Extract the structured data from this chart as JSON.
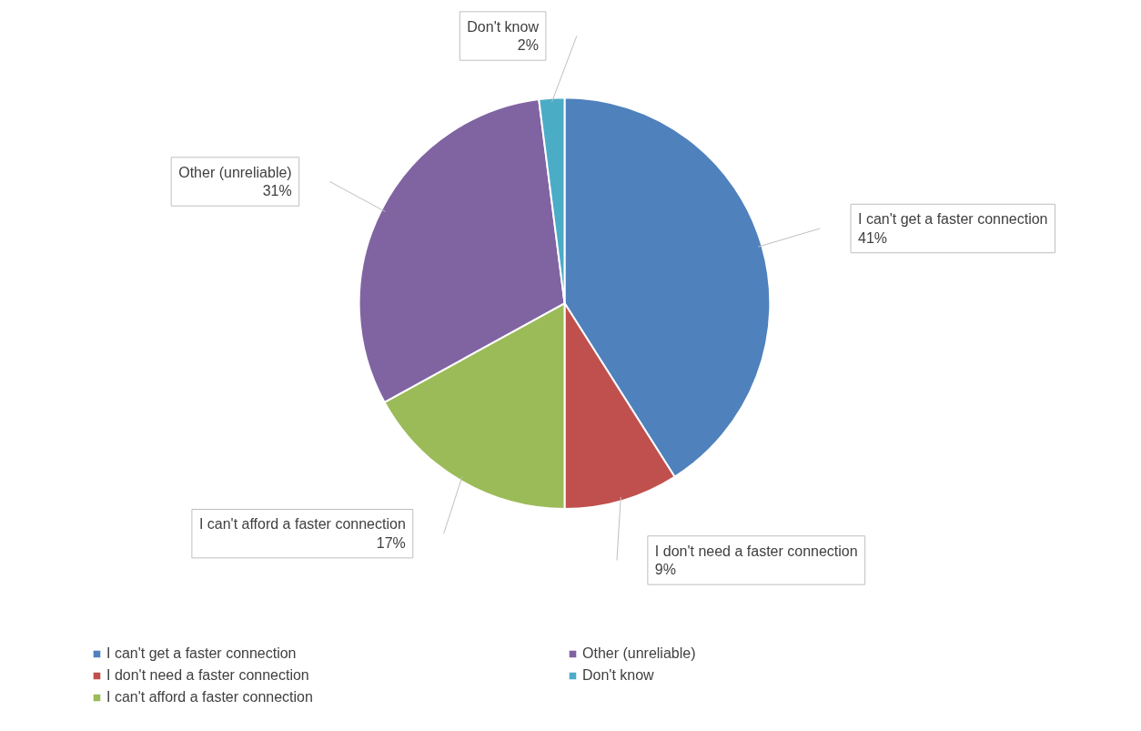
{
  "chart_data": {
    "type": "pie",
    "categories": [
      "I can't get a faster connection",
      "I don't need a faster connection",
      "I can't afford a faster connection",
      "Other (unreliable)",
      "Don't know"
    ],
    "values": [
      41,
      9,
      17,
      31,
      2
    ],
    "value_labels": [
      "41%",
      "9%",
      "17%",
      "31%",
      "2%"
    ],
    "colors": [
      "#4f81bd",
      "#c0504d",
      "#9bbb59",
      "#8064a2",
      "#4bacc6"
    ],
    "legend": "bottom"
  }
}
